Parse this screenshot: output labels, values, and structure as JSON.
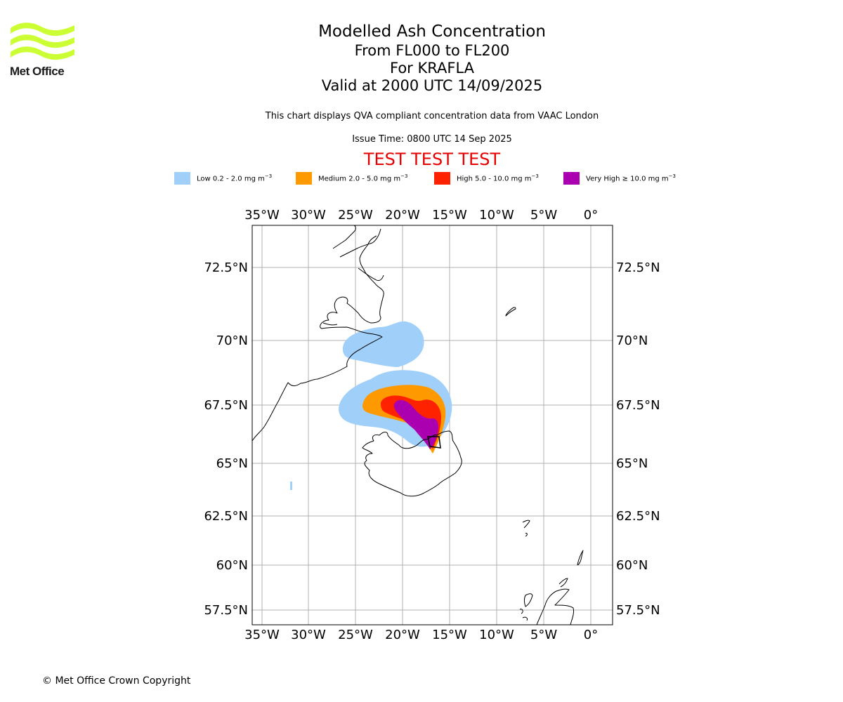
{
  "header": {
    "logo_text": "Met Office",
    "title": "Modelled Ash Concentration",
    "levels": "From FL000 to FL200",
    "volcano": "For KRAFLA",
    "valid": "Valid at 2000 UTC 14/09/2025",
    "subtitle": "This chart displays QVA compliant concentration data from VAAC London",
    "issue_time": "Issue Time: 0800 UTC 14 Sep 2025",
    "test_banner": "TEST TEST TEST"
  },
  "legend": [
    {
      "level": "Low",
      "range": "0.2 - 2.0 mg m",
      "color": "#a0d0fa"
    },
    {
      "level": "Medium",
      "range": "2.0 - 5.0 mg m",
      "color": "#ff9900"
    },
    {
      "level": "High",
      "range": "5.0 - 10.0 mg m",
      "color": "#ff2200"
    },
    {
      "level": "Very High",
      "range": "≥ 10.0 mg m",
      "color": "#aa00b0"
    }
  ],
  "legend_unit_exponent": "−3",
  "map": {
    "lon_ticks": [
      "35°W",
      "30°W",
      "25°W",
      "20°W",
      "15°W",
      "10°W",
      "5°W",
      "0°"
    ],
    "lat_ticks": [
      "72.5°N",
      "70°N",
      "67.5°N",
      "65°N",
      "62.5°N",
      "60°N",
      "57.5°N"
    ],
    "grid": true,
    "volcano_marker": "star-icon"
  },
  "footer": {
    "copyright": "© Met Office Crown Copyright"
  }
}
